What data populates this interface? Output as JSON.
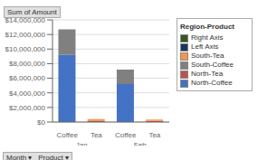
{
  "chart_data": {
    "type": "bar",
    "stacked": true,
    "title": "Sum of Amount",
    "categories": [
      "Coffee",
      "Tea",
      "Coffee",
      "Tea"
    ],
    "groups": [
      "Jan",
      "Feb"
    ],
    "series": [
      {
        "name": "North-Coffee",
        "color": "#4472C4",
        "values": [
          9200000,
          0,
          5200000,
          0
        ]
      },
      {
        "name": "North-Tea",
        "color": "#C0504D",
        "values": [
          0,
          180000,
          0,
          150000
        ]
      },
      {
        "name": "South-Coffee",
        "color": "#808080",
        "values": [
          3500000,
          0,
          2000000,
          0
        ]
      },
      {
        "name": "South-Tea",
        "color": "#F79646",
        "values": [
          0,
          220000,
          0,
          180000
        ]
      }
    ],
    "legend_title": "Region-Product",
    "legend_entries": [
      {
        "name": "Right Axis",
        "color": "#375623"
      },
      {
        "name": "Left Axis",
        "color": "#17375E"
      },
      {
        "name": "South-Tea",
        "color": "#F79646"
      },
      {
        "name": "South-Coffee",
        "color": "#808080"
      },
      {
        "name": "North-Tea",
        "color": "#C0504D"
      },
      {
        "name": "North-Coffee",
        "color": "#4472C4"
      }
    ],
    "footer": "Month ▾   Product ▾",
    "ylim": [
      0,
      14000000
    ],
    "yticks": [
      {
        "value": 0,
        "label": "$0"
      },
      {
        "value": 2000000,
        "label": "$2,000,000"
      },
      {
        "value": 4000000,
        "label": "$4,000,000"
      },
      {
        "value": 6000000,
        "label": "$6,000,000"
      },
      {
        "value": 8000000,
        "label": "$8,000,000"
      },
      {
        "value": 10000000,
        "label": "$10,000,000"
      },
      {
        "value": 12000000,
        "label": "$12,000,000"
      },
      {
        "value": 14000000,
        "label": "$14,000,000"
      }
    ],
    "grid": true,
    "legend": "right"
  }
}
